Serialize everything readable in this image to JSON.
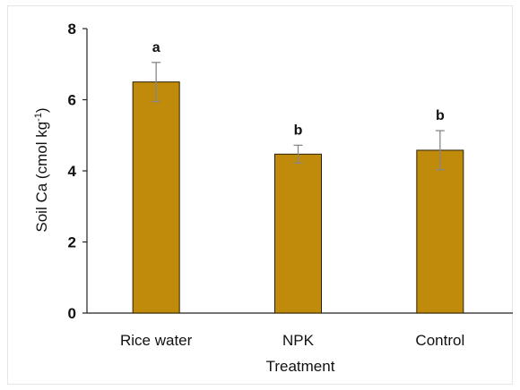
{
  "chart_data": {
    "type": "bar",
    "xlabel": "Treatment",
    "ylabel_main": "Soil Ca (cmol kg",
    "ylabel_sup": "-1",
    "ylabel_close": ")",
    "ylim": [
      0,
      8
    ],
    "yticks": [
      "0",
      "2",
      "4",
      "6",
      "8"
    ],
    "categories": [
      "Rice water",
      "NPK",
      "Control"
    ],
    "values": [
      6.5,
      4.47,
      4.58
    ],
    "errors": [
      0.55,
      0.25,
      0.55
    ],
    "significance": [
      "a",
      "b",
      "b"
    ],
    "bar_color": "#c08a0a",
    "bar_edge": "#2a2000",
    "error_color": "#888888",
    "grid": false,
    "legend": "none"
  }
}
